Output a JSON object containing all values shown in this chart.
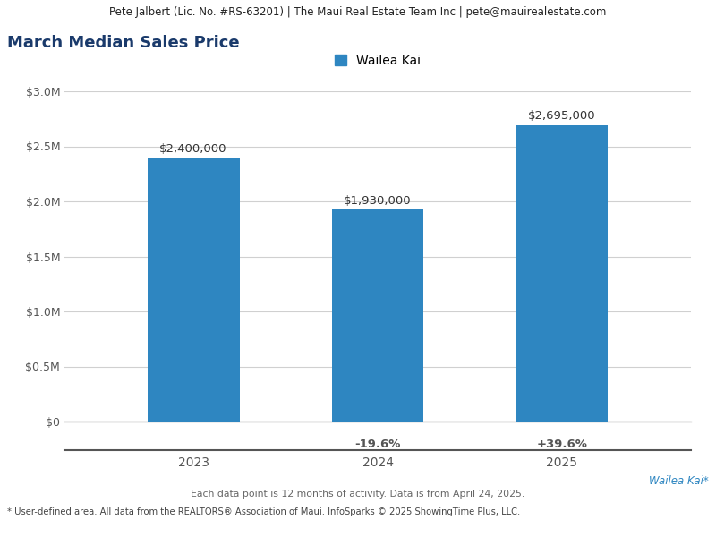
{
  "title": "March Median Sales Price",
  "header": "Pete Jalbert (Lic. No. #RS-63201) | The Maui Real Estate Team Inc | pete@mauirealestate.com",
  "legend_label": "Wailea Kai",
  "bar_color": "#2e86c1",
  "categories": [
    "2023",
    "2024",
    "2025"
  ],
  "values": [
    2400000,
    1930000,
    2695000
  ],
  "bar_labels": [
    "$2,400,000",
    "$1,930,000",
    "$2,695,000"
  ],
  "pct_changes": [
    "",
    "-19.6%",
    "+39.6%"
  ],
  "ylim": [
    0,
    3000000
  ],
  "yticks": [
    0,
    500000,
    1000000,
    1500000,
    2000000,
    2500000,
    3000000
  ],
  "ytick_labels": [
    "$0",
    "$0.5M",
    "$1.0M",
    "$1.5M",
    "$2.0M",
    "$2.5M",
    "$3.0M"
  ],
  "footer_line1": "Wailea Kai*",
  "footer_line2": "Each data point is 12 months of activity. Data is from April 24, 2025.",
  "footer_line3": "* User-defined area. All data from the REALTORS® Association of Maui. InfoSparks © 2025 ShowingTime Plus, LLC.",
  "title_color": "#1a3a6b",
  "header_bg": "#e0e0e0",
  "footer_color1": "#2e86c1",
  "footer_color2": "#666666",
  "footer_color3": "#444444",
  "pct_color": "#555555",
  "bar_label_color": "#333333",
  "grid_color": "#d0d0d0"
}
